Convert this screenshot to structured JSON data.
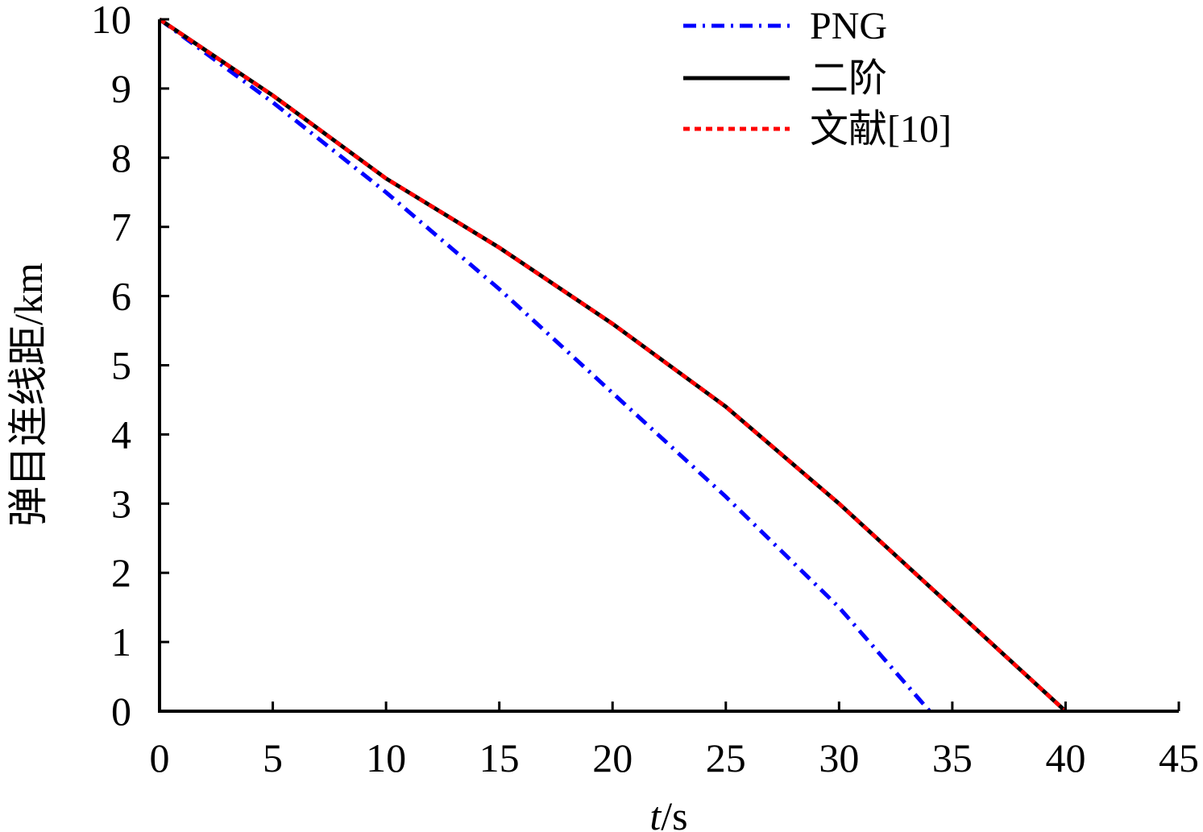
{
  "chart_data": {
    "type": "line",
    "xlabel_italic": "t",
    "xlabel_rest": "/s",
    "ylabel": "弹目连线距/km",
    "xlim": [
      0,
      45
    ],
    "ylim": [
      0,
      10
    ],
    "xticks": [
      "0",
      "5",
      "10",
      "15",
      "20",
      "25",
      "30",
      "35",
      "40",
      "45"
    ],
    "yticks": [
      "0",
      "1",
      "2",
      "3",
      "4",
      "5",
      "6",
      "7",
      "8",
      "9",
      "10"
    ],
    "grid": false,
    "legend_position": "top-right",
    "series": [
      {
        "name": "PNG",
        "color": "#0000ff",
        "style": "dash-dot",
        "x": [
          0,
          5,
          10,
          15,
          20,
          25,
          30,
          34
        ],
        "y": [
          10,
          8.8,
          7.5,
          6.1,
          4.6,
          3.1,
          1.5,
          0
        ]
      },
      {
        "name": "二阶",
        "color": "#000000",
        "style": "solid",
        "x": [
          0,
          5,
          10,
          15,
          20,
          25,
          30,
          35,
          40
        ],
        "y": [
          10,
          8.9,
          7.7,
          6.7,
          5.6,
          4.4,
          3.0,
          1.5,
          0
        ]
      },
      {
        "name": "文献[10]",
        "color": "#ff0000",
        "style": "dotted",
        "x": [
          0,
          5,
          10,
          15,
          20,
          25,
          30,
          35,
          40
        ],
        "y": [
          10,
          8.9,
          7.7,
          6.7,
          5.6,
          4.4,
          3.0,
          1.5,
          0
        ]
      }
    ]
  }
}
